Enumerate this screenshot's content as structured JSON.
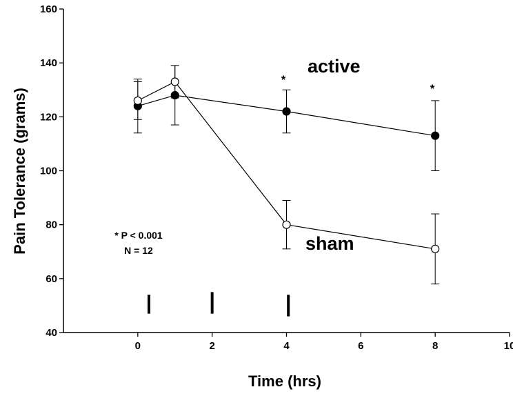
{
  "chart_data": {
    "type": "line",
    "xlabel": "Time (hrs)",
    "ylabel": "Pain Tolerance (grams)",
    "xlim": [
      -2,
      10
    ],
    "ylim": [
      40,
      160
    ],
    "x_ticks": [
      0,
      2,
      4,
      6,
      8,
      10
    ],
    "y_ticks": [
      40,
      60,
      80,
      100,
      120,
      140,
      160
    ],
    "legend": "none",
    "grid": false,
    "series": [
      {
        "name": "active",
        "marker": "filled-circle",
        "color": "#000000",
        "points": [
          {
            "x": 0,
            "y": 124,
            "err": 10
          },
          {
            "x": 1,
            "y": 128,
            "err": 11
          },
          {
            "x": 4,
            "y": 122,
            "err": 8
          },
          {
            "x": 8,
            "y": 113,
            "err": 13
          }
        ]
      },
      {
        "name": "sham",
        "marker": "open-circle",
        "color": "#000000",
        "points": [
          {
            "x": 0,
            "y": 126,
            "err": 7
          },
          {
            "x": 1,
            "y": 133,
            "err": 6
          },
          {
            "x": 4,
            "y": 80,
            "err": 9
          },
          {
            "x": 8,
            "y": 71,
            "err": 13
          }
        ]
      }
    ],
    "significance_markers": [
      {
        "x": 4,
        "y": 134,
        "text": "*"
      },
      {
        "x": 8,
        "y": 129,
        "text": "*"
      }
    ],
    "annotations": {
      "p_value": "* P < 0.001",
      "n": "N = 12"
    },
    "event_marks": [
      {
        "x": 0.3,
        "y_bottom": 47,
        "y_top": 54
      },
      {
        "x": 2,
        "y_bottom": 47,
        "y_top": 55
      },
      {
        "x": 4.05,
        "y_bottom": 46,
        "y_top": 54
      }
    ]
  }
}
